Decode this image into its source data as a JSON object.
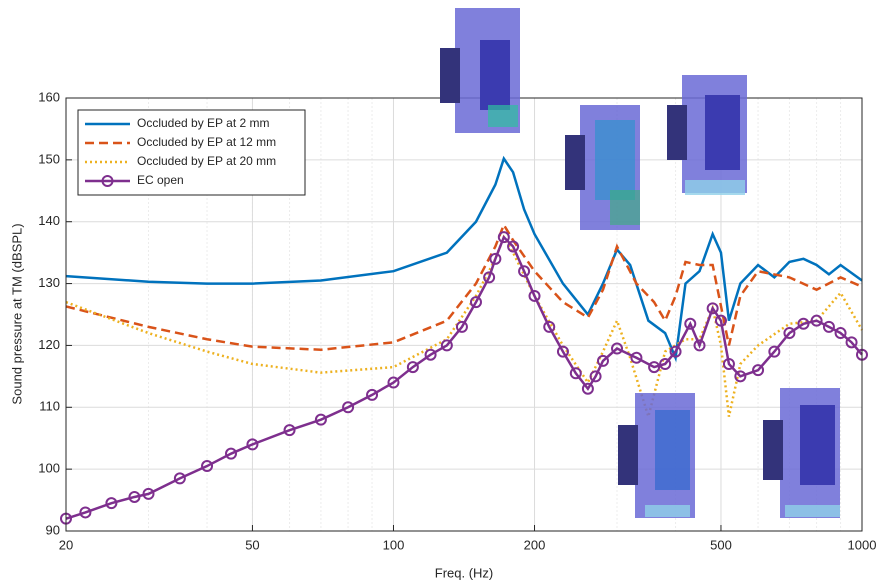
{
  "chart_data": {
    "type": "line",
    "xlabel": "Freq. (Hz)",
    "ylabel": "Sound pressure at TM (dBSPL)",
    "xscale": "log",
    "grid": true,
    "legend": "upper left",
    "xlim": [
      20,
      1000
    ],
    "xticks": [
      20,
      50,
      100,
      200,
      500,
      1000
    ],
    "ylim": [
      90,
      160
    ],
    "yticks": [
      90,
      100,
      110,
      120,
      130,
      140,
      150,
      160
    ],
    "series": [
      {
        "name": "Occluded by EP at 2 mm",
        "color": "#0072bd",
        "style": "solid",
        "x": [
          20,
          30,
          40,
          50,
          70,
          100,
          130,
          150,
          165,
          172,
          180,
          190,
          200,
          230,
          260,
          280,
          300,
          320,
          350,
          380,
          400,
          420,
          450,
          480,
          500,
          520,
          550,
          600,
          650,
          700,
          750,
          800,
          850,
          900,
          1000
        ],
        "values": [
          131.2,
          130.3,
          130,
          130,
          130.5,
          132,
          135,
          140,
          146,
          150.2,
          148,
          142,
          138,
          130,
          125,
          130,
          135.5,
          133,
          124,
          122,
          118,
          130,
          132,
          138,
          135,
          124,
          130,
          133,
          131,
          133.5,
          134,
          133,
          131.5,
          133,
          130.5
        ]
      },
      {
        "name": "Occluded by EP at 12 mm",
        "color": "#d95319",
        "style": "dashed",
        "x": [
          20,
          30,
          40,
          50,
          70,
          100,
          130,
          150,
          165,
          172,
          180,
          200,
          230,
          260,
          280,
          300,
          330,
          360,
          380,
          400,
          420,
          450,
          480,
          520,
          550,
          600,
          700,
          800,
          900,
          1000
        ],
        "values": [
          126.3,
          123,
          121,
          119.8,
          119.3,
          120.5,
          124,
          130,
          136,
          139.5,
          137,
          132,
          127,
          124.5,
          129,
          136,
          130,
          127,
          124,
          128,
          133.5,
          133,
          133,
          120,
          128,
          132,
          131,
          129,
          131,
          129.5
        ]
      },
      {
        "name": "Occluded by EP at 20 mm",
        "color": "#edb120",
        "style": "dotted",
        "x": [
          20,
          30,
          40,
          50,
          70,
          100,
          130,
          150,
          165,
          172,
          180,
          200,
          230,
          260,
          280,
          300,
          320,
          350,
          380,
          420,
          450,
          480,
          500,
          520,
          550,
          600,
          700,
          800,
          900,
          1000
        ],
        "values": [
          127,
          122,
          119,
          117,
          115.6,
          116.5,
          121,
          128,
          134,
          137.5,
          135,
          128,
          120,
          114,
          119,
          124,
          118,
          108.5,
          119,
          121,
          121,
          126,
          120,
          108.5,
          117,
          120,
          123.5,
          124,
          128.5,
          122.5
        ]
      },
      {
        "name": "EC open",
        "color": "#7e2f8e",
        "style": "solid",
        "marker": "circle",
        "x": [
          20,
          22,
          25,
          28,
          30,
          35,
          40,
          45,
          50,
          60,
          70,
          80,
          90,
          100,
          110,
          120,
          130,
          140,
          150,
          160,
          165,
          172,
          180,
          190,
          200,
          215,
          230,
          245,
          260,
          270,
          280,
          300,
          330,
          360,
          380,
          400,
          430,
          450,
          480,
          500,
          520,
          550,
          600,
          650,
          700,
          750,
          800,
          850,
          900,
          950,
          1000
        ],
        "values": [
          92,
          93,
          94.5,
          95.5,
          96,
          98.5,
          100.5,
          102.5,
          104,
          106.3,
          108,
          110,
          112,
          114,
          116.5,
          118.5,
          120,
          123,
          127,
          131,
          134,
          137.5,
          136,
          132,
          128,
          123,
          119,
          115.5,
          113,
          115,
          117.5,
          119.5,
          118,
          116.5,
          117,
          119,
          123.5,
          120,
          126,
          124,
          117,
          115,
          116,
          119,
          122,
          123.5,
          124,
          123,
          122,
          120.5,
          118.5
        ]
      }
    ]
  }
}
